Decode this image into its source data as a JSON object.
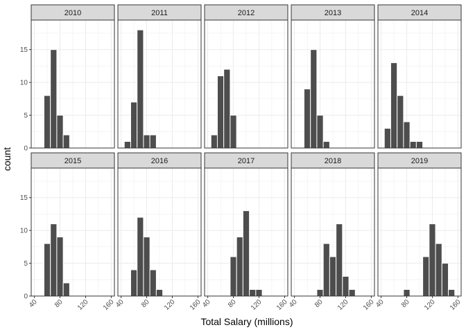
{
  "chart_data": {
    "type": "bar",
    "subtype": "faceted-histogram",
    "xlabel": "Total Salary (millions)",
    "ylabel": "count",
    "xlim": [
      35,
      165
    ],
    "ylim": [
      0,
      19.5
    ],
    "x_ticks": [
      40,
      80,
      120,
      160
    ],
    "y_ticks": [
      0,
      5,
      10,
      15
    ],
    "bin_width": 10,
    "grid": true,
    "bar_color": "#4d4d4d",
    "panel_border_color": "#333333",
    "strip_fill": "#d9d9d9",
    "grid_color": "#ebebeb",
    "facets": [
      {
        "label": "2010",
        "bins": [
          {
            "x": 60,
            "count": 8
          },
          {
            "x": 70,
            "count": 15
          },
          {
            "x": 80,
            "count": 5
          },
          {
            "x": 90,
            "count": 2
          }
        ]
      },
      {
        "label": "2011",
        "bins": [
          {
            "x": 50,
            "count": 1
          },
          {
            "x": 60,
            "count": 7
          },
          {
            "x": 70,
            "count": 18
          },
          {
            "x": 80,
            "count": 2
          },
          {
            "x": 90,
            "count": 2
          }
        ]
      },
      {
        "label": "2012",
        "bins": [
          {
            "x": 50,
            "count": 2
          },
          {
            "x": 60,
            "count": 11
          },
          {
            "x": 70,
            "count": 12
          },
          {
            "x": 80,
            "count": 5
          }
        ]
      },
      {
        "label": "2013",
        "bins": [
          {
            "x": 60,
            "count": 9
          },
          {
            "x": 70,
            "count": 15
          },
          {
            "x": 80,
            "count": 5
          },
          {
            "x": 90,
            "count": 1
          }
        ]
      },
      {
        "label": "2014",
        "bins": [
          {
            "x": 50,
            "count": 3
          },
          {
            "x": 60,
            "count": 13
          },
          {
            "x": 70,
            "count": 8
          },
          {
            "x": 80,
            "count": 4
          },
          {
            "x": 90,
            "count": 1
          },
          {
            "x": 100,
            "count": 1
          }
        ]
      },
      {
        "label": "2015",
        "bins": [
          {
            "x": 60,
            "count": 8
          },
          {
            "x": 70,
            "count": 11
          },
          {
            "x": 80,
            "count": 9
          },
          {
            "x": 90,
            "count": 2
          }
        ]
      },
      {
        "label": "2016",
        "bins": [
          {
            "x": 60,
            "count": 4
          },
          {
            "x": 70,
            "count": 12
          },
          {
            "x": 80,
            "count": 9
          },
          {
            "x": 90,
            "count": 4
          },
          {
            "x": 100,
            "count": 1
          }
        ]
      },
      {
        "label": "2017",
        "bins": [
          {
            "x": 80,
            "count": 6
          },
          {
            "x": 90,
            "count": 9
          },
          {
            "x": 100,
            "count": 13
          },
          {
            "x": 110,
            "count": 1
          },
          {
            "x": 120,
            "count": 1
          }
        ]
      },
      {
        "label": "2018",
        "bins": [
          {
            "x": 80,
            "count": 1
          },
          {
            "x": 90,
            "count": 8
          },
          {
            "x": 100,
            "count": 6
          },
          {
            "x": 110,
            "count": 11
          },
          {
            "x": 120,
            "count": 3
          },
          {
            "x": 130,
            "count": 1
          }
        ]
      },
      {
        "label": "2019",
        "bins": [
          {
            "x": 80,
            "count": 1
          },
          {
            "x": 110,
            "count": 6
          },
          {
            "x": 120,
            "count": 11
          },
          {
            "x": 130,
            "count": 8
          },
          {
            "x": 140,
            "count": 5
          },
          {
            "x": 150,
            "count": 1
          }
        ]
      }
    ]
  }
}
